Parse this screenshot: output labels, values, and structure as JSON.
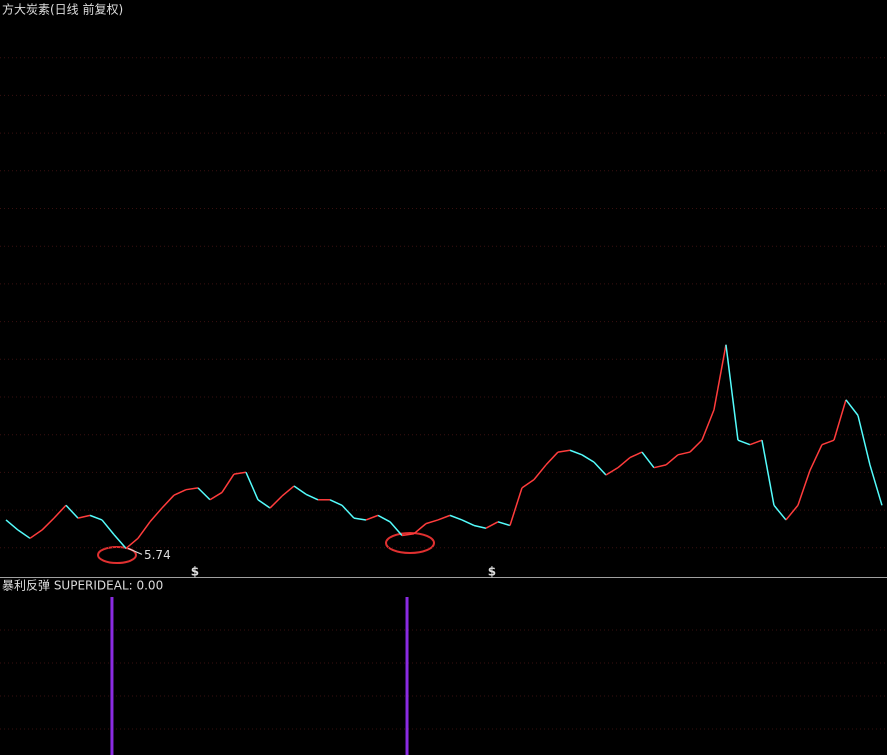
{
  "chart_data": [
    {
      "type": "line",
      "title": "方大炭素(日线 前复权)",
      "categories": [
        null,
        null,
        null,
        null,
        null,
        null,
        null,
        null,
        null,
        null,
        null,
        null,
        null,
        null,
        null,
        null,
        null,
        null,
        null,
        null,
        null,
        null,
        null,
        null,
        null,
        null,
        null,
        null,
        null,
        null,
        null,
        null,
        null,
        null,
        null,
        null,
        null,
        null,
        null,
        null,
        null,
        null,
        null,
        null,
        null,
        null,
        null,
        null,
        null,
        null,
        null,
        null,
        null,
        null,
        null,
        null,
        null,
        null,
        null,
        null,
        null,
        null,
        null,
        null,
        null,
        null,
        null,
        null,
        null,
        null,
        null,
        null,
        null,
        null
      ],
      "values": [
        6.05,
        5.94,
        5.85,
        5.94,
        6.07,
        6.21,
        6.07,
        6.1,
        6.05,
        5.89,
        5.74,
        5.85,
        6.03,
        6.18,
        6.32,
        6.38,
        6.4,
        6.27,
        6.35,
        6.55,
        6.57,
        6.27,
        6.18,
        6.31,
        6.42,
        6.33,
        6.27,
        6.27,
        6.21,
        6.07,
        6.05,
        6.1,
        6.03,
        5.88,
        5.9,
        6.01,
        6.05,
        6.1,
        6.05,
        5.99,
        5.96,
        6.03,
        5.99,
        6.4,
        6.49,
        6.65,
        6.79,
        6.81,
        6.76,
        6.68,
        6.54,
        6.62,
        6.73,
        6.79,
        6.62,
        6.65,
        6.76,
        6.79,
        6.92,
        7.25,
        7.96,
        6.92,
        6.87,
        6.92,
        6.21,
        6.05,
        6.21,
        6.59,
        6.87,
        6.92,
        7.36,
        7.19,
        6.65,
        6.21
      ],
      "up_color": "#ff3c3c",
      "down_color": "#54fcfc",
      "xlim": [
        -0.5,
        73.42
      ],
      "ylim": [
        5.45,
        11.5
      ],
      "grid": true,
      "annotations": [
        {
          "text": "5.74",
          "x": 10,
          "y": 5.74
        }
      ],
      "markers": [
        {
          "x": 15.75,
          "label": "$"
        },
        {
          "x": 40.5,
          "label": "$"
        }
      ]
    },
    {
      "type": "bar",
      "title": "暴利反弹  SUPERIDEAL: 0.00",
      "x": [
        8.83,
        33.42
      ],
      "values": [
        1,
        1
      ],
      "color": "#8a2be2",
      "xlim": [
        -0.5,
        73.42
      ],
      "ylim": [
        0,
        1
      ],
      "grid": true
    }
  ]
}
